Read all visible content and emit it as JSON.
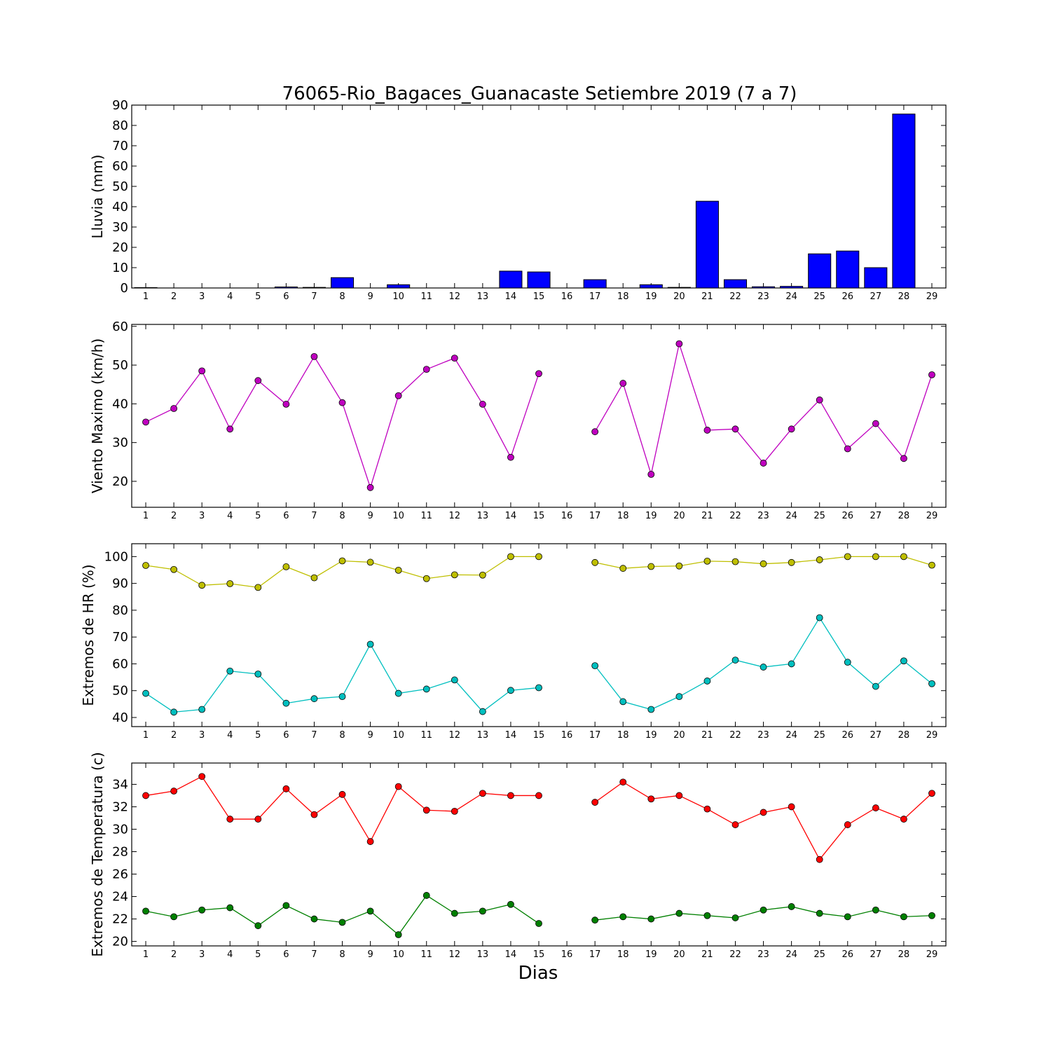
{
  "chart_data": {
    "title": "76065-Rio_Bagaces_Guanacaste Setiembre 2019  (7 a 7)",
    "xlabel": "Dias",
    "x": [
      1,
      2,
      3,
      4,
      5,
      6,
      7,
      8,
      9,
      10,
      11,
      12,
      13,
      14,
      15,
      16,
      17,
      18,
      19,
      20,
      21,
      22,
      23,
      24,
      25,
      26,
      27,
      28,
      29
    ],
    "panels": [
      {
        "id": "lluvia",
        "type": "bar",
        "ylabel": "Lluvia (mm)",
        "ylim": [
          0,
          90
        ],
        "yticks": [
          0,
          10,
          20,
          30,
          40,
          50,
          60,
          70,
          80,
          90
        ],
        "series": [
          {
            "color": "#0000ff",
            "values": [
              0.2,
              0,
              0,
              0,
              0,
              0.5,
              0.3,
              5.1,
              0,
              1.6,
              0,
              0,
              0,
              8.3,
              7.9,
              0,
              4.1,
              0,
              1.6,
              0.3,
              42.7,
              4.1,
              0.6,
              0.8,
              16.8,
              18.2,
              10,
              85.6,
              0
            ]
          }
        ]
      },
      {
        "id": "viento",
        "type": "line",
        "ylabel": "Viento Maximo (km/h)",
        "ylim": [
          13.3,
          60.5
        ],
        "yticks": [
          20,
          30,
          40,
          50,
          60
        ],
        "series": [
          {
            "color": "#bf00bf",
            "values": [
              35.3,
              38.8,
              48.5,
              33.5,
              46.0,
              39.9,
              52.2,
              40.3,
              18.4,
              42.1,
              48.9,
              51.8,
              39.9,
              26.2,
              47.8,
              null,
              32.8,
              45.3,
              21.8,
              55.5,
              33.2,
              33.5,
              24.7,
              33.5,
              41.0,
              28.4,
              34.9,
              25.9,
              47.5
            ]
          }
        ]
      },
      {
        "id": "hr",
        "type": "line",
        "ylabel": "Extremos de HR (%)",
        "ylim": [
          36.6,
          104.8
        ],
        "yticks": [
          40,
          50,
          60,
          70,
          80,
          90,
          100
        ],
        "series": [
          {
            "color": "#bfbf00",
            "values": [
              96.7,
              95.2,
              89.3,
              89.9,
              88.5,
              96.2,
              92.1,
              98.4,
              97.9,
              94.9,
              91.8,
              93.2,
              93.1,
              100,
              100,
              null,
              97.8,
              95.6,
              96.3,
              96.5,
              98.3,
              98.1,
              97.3,
              97.8,
              98.8,
              100,
              100,
              100,
              96.8
            ]
          },
          {
            "color": "#00bfbf",
            "values": [
              49,
              42,
              43,
              57.3,
              56.2,
              45.3,
              47,
              47.8,
              67.3,
              49,
              50.6,
              54,
              42.2,
              50.1,
              51.1,
              null,
              59.3,
              45.9,
              43,
              47.8,
              53.6,
              61.4,
              58.8,
              60,
              77.2,
              60.6,
              51.6,
              61.1,
              52.6
            ]
          }
        ]
      },
      {
        "id": "temp",
        "type": "line",
        "ylabel": "Extremos de Temperatura (c)",
        "ylim": [
          19.6,
          35.9
        ],
        "yticks": [
          20,
          22,
          24,
          26,
          28,
          30,
          32,
          34
        ],
        "series": [
          {
            "color": "#ff0000",
            "values": [
              33.0,
              33.4,
              34.7,
              30.9,
              30.9,
              33.6,
              31.3,
              33.1,
              28.9,
              33.8,
              31.7,
              31.6,
              33.2,
              33.0,
              33.0,
              null,
              32.4,
              34.2,
              32.7,
              33.0,
              31.8,
              30.4,
              31.5,
              32.0,
              27.3,
              30.4,
              31.9,
              30.9,
              33.2
            ]
          },
          {
            "color": "#008000",
            "values": [
              22.7,
              22.2,
              22.8,
              23.0,
              21.4,
              23.2,
              22.0,
              21.7,
              22.7,
              20.6,
              24.1,
              22.5,
              22.7,
              23.3,
              21.6,
              null,
              21.9,
              22.2,
              22.0,
              22.5,
              22.3,
              22.1,
              22.8,
              23.1,
              22.5,
              22.2,
              22.8,
              22.2,
              22.3
            ]
          }
        ]
      }
    ]
  }
}
